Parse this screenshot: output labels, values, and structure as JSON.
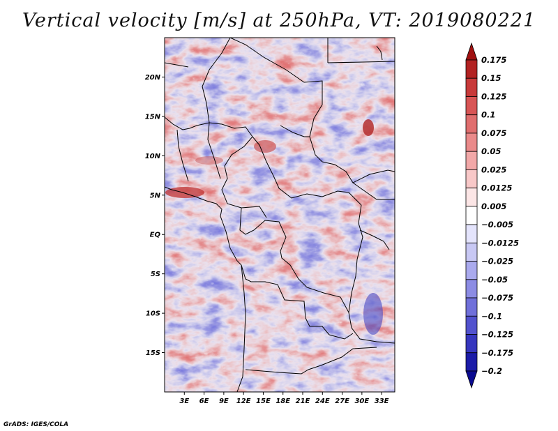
{
  "title": "Vertical velocity [m/s] at 250hPa, VT: 2019080221",
  "footer": "GrADS: IGES/COLA",
  "map": {
    "lat_labels": [
      "20N",
      "15N",
      "10N",
      "5N",
      "EQ",
      "5S",
      "10S",
      "15S"
    ],
    "lat_values": [
      20,
      15,
      10,
      5,
      0,
      -5,
      -10,
      -15
    ],
    "lon_labels": [
      "3E",
      "6E",
      "9E",
      "12E",
      "15E",
      "18E",
      "21E",
      "24E",
      "27E",
      "30E",
      "33E"
    ],
    "lon_values": [
      3,
      6,
      9,
      12,
      15,
      18,
      21,
      24,
      27,
      30,
      33
    ],
    "lat_range": [
      -20,
      25
    ],
    "lon_range": [
      0,
      35
    ]
  },
  "colorbar": {
    "labels": [
      "0.175",
      "0.15",
      "0.125",
      "0.1",
      "0.075",
      "0.05",
      "0.025",
      "0.0125",
      "0.005",
      "−0.005",
      "−0.0125",
      "−0.025",
      "−0.05",
      "−0.075",
      "−0.1",
      "−0.125",
      "−0.175",
      "−0.2"
    ],
    "colors": [
      "#a01010",
      "#b22222",
      "#c83a3a",
      "#d85555",
      "#e06e6e",
      "#ea8a8a",
      "#f2a8a8",
      "#f8c8c8",
      "#fce6e6",
      "#ffffff",
      "#e4e4fc",
      "#c8c8f4",
      "#aaaaee",
      "#8c8ce4",
      "#7070da",
      "#5252ce",
      "#3636be",
      "#1c1ca8",
      "#0a0a90"
    ]
  }
}
